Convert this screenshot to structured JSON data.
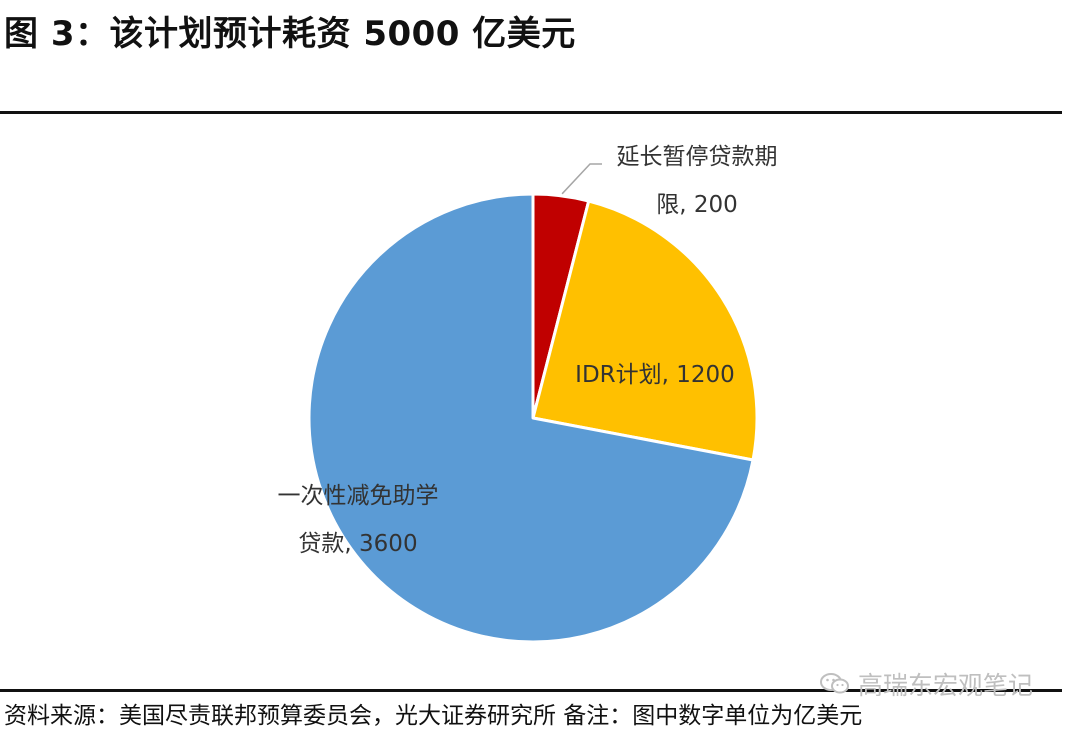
{
  "header": {
    "title": "图 3：该计划预计耗资 5000 亿美元"
  },
  "footer": {
    "source": "资料来源：美国尽责联邦预算委员会，光大证券研究所  备注：图中数字单位为亿美元",
    "watermark": "高瑞东宏观笔记",
    "watermark_icon": "wechat-icon"
  },
  "chart_data": {
    "type": "pie",
    "title": "",
    "unit": "亿美元",
    "start_angle_deg": 0,
    "direction": "clockwise",
    "slices": [
      {
        "label_lines": [
          "延长暂停贷款期",
          "限, 200"
        ],
        "value": 200,
        "color": "#C00000"
      },
      {
        "label_lines": [
          "IDR计划, 1200"
        ],
        "value": 1200,
        "color": "#FFC000"
      },
      {
        "label_lines": [
          "一次性减免助学",
          "贷款, 3600"
        ],
        "value": 3600,
        "color": "#5B9BD5"
      }
    ],
    "slice_border_color": "#ffffff",
    "leader_line_color": "#a6a6a6"
  }
}
